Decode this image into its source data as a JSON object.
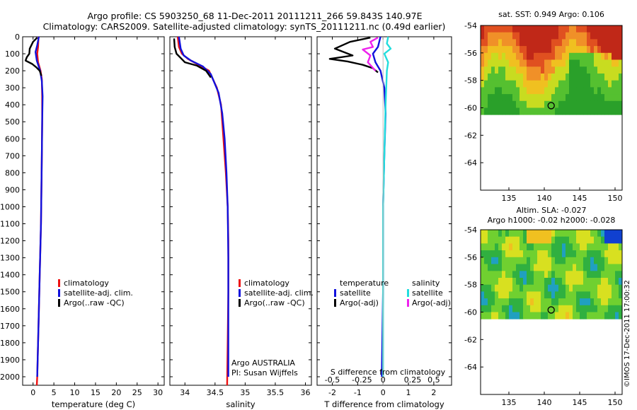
{
  "title": {
    "line1": "Argo profile: CS 5903250_68 11-Dec-2011 20111211_266 59.843S 140.97E",
    "line2": "Climatology: CARS2009. Satellite-adjusted climatology: synTS_20111211.nc (0.49d earlier)"
  },
  "credit": "©IMOS 17-Dec-2011 17:00:32",
  "colors": {
    "climatology": "#ee1111",
    "satellite": "#1111dd",
    "argo": "#000000",
    "sal_satellite": "#22dddd",
    "sal_argo": "#ee22ee"
  },
  "depth_axis": {
    "ylim": [
      0,
      2050
    ],
    "ticks": [
      0,
      100,
      200,
      300,
      400,
      500,
      600,
      700,
      800,
      900,
      1000,
      1100,
      1200,
      1300,
      1400,
      1500,
      1600,
      1700,
      1800,
      1900,
      2000
    ]
  },
  "chart_data": [
    {
      "type": "line",
      "id": "temperature",
      "xlabel": "temperature (deg C)",
      "xlim": [
        -2.5,
        31.5
      ],
      "xticks": [
        0,
        5,
        10,
        15,
        20,
        25,
        30
      ],
      "legend": [
        "climatology",
        "satellite-adj. clim.",
        "Argo(..raw -QC)"
      ],
      "series": [
        {
          "name": "climatology",
          "color": "#ee1111",
          "points": [
            [
              1.3,
              0
            ],
            [
              1.2,
              60
            ],
            [
              1.0,
              100
            ],
            [
              1.2,
              150
            ],
            [
              1.8,
              200
            ],
            [
              2.1,
              250
            ],
            [
              2.2,
              350
            ],
            [
              2.2,
              500
            ],
            [
              2.1,
              700
            ],
            [
              2.0,
              900
            ],
            [
              1.9,
              1100
            ],
            [
              1.6,
              1400
            ],
            [
              1.3,
              1700
            ],
            [
              1.0,
              2000
            ],
            [
              0.9,
              2050
            ]
          ]
        },
        {
          "name": "satellite-adj. clim.",
          "color": "#1111dd",
          "points": [
            [
              1.4,
              0
            ],
            [
              1.0,
              50
            ],
            [
              0.6,
              90
            ],
            [
              0.9,
              140
            ],
            [
              1.7,
              200
            ],
            [
              2.1,
              260
            ],
            [
              2.3,
              350
            ],
            [
              2.2,
              500
            ],
            [
              2.1,
              700
            ],
            [
              2.0,
              900
            ],
            [
              1.9,
              1100
            ],
            [
              1.6,
              1400
            ],
            [
              1.3,
              1700
            ],
            [
              1.0,
              2000
            ]
          ]
        },
        {
          "name": "Argo(..raw -QC)",
          "color": "#000000",
          "points": [
            [
              1.0,
              5
            ],
            [
              0.0,
              30
            ],
            [
              -0.8,
              70
            ],
            [
              -0.9,
              100
            ],
            [
              -1.5,
              120
            ],
            [
              -1.8,
              140
            ],
            [
              -0.2,
              160
            ],
            [
              0.8,
              180
            ],
            [
              1.6,
              200
            ],
            [
              2.0,
              230
            ]
          ]
        }
      ]
    },
    {
      "type": "line",
      "id": "salinity",
      "xlabel": "salinity",
      "xlim": [
        33.75,
        36.1
      ],
      "xticks": [
        34,
        34.5,
        35,
        35.5,
        36
      ],
      "legend": [
        "climatology",
        "satellite-adj. clim.",
        "Argo(..raw -QC)"
      ],
      "annotation": [
        "Argo AUSTRALIA",
        "PI: Susan Wijffels"
      ],
      "series": [
        {
          "name": "climatology",
          "color": "#ee1111",
          "points": [
            [
              33.88,
              0
            ],
            [
              33.9,
              60
            ],
            [
              33.95,
              100
            ],
            [
              34.05,
              130
            ],
            [
              34.25,
              170
            ],
            [
              34.4,
              200
            ],
            [
              34.53,
              300
            ],
            [
              34.6,
              400
            ],
            [
              34.64,
              600
            ],
            [
              34.68,
              800
            ],
            [
              34.71,
              1000
            ],
            [
              34.72,
              1200
            ],
            [
              34.72,
              1500
            ],
            [
              34.71,
              1800
            ],
            [
              34.7,
              2050
            ]
          ]
        },
        {
          "name": "satellite-adj. clim.",
          "color": "#1111dd",
          "points": [
            [
              33.9,
              0
            ],
            [
              33.93,
              70
            ],
            [
              33.98,
              110
            ],
            [
              34.1,
              140
            ],
            [
              34.3,
              175
            ],
            [
              34.43,
              220
            ],
            [
              34.56,
              330
            ],
            [
              34.62,
              450
            ],
            [
              34.66,
              600
            ],
            [
              34.69,
              800
            ],
            [
              34.71,
              1000
            ],
            [
              34.72,
              1300
            ],
            [
              34.72,
              1600
            ],
            [
              34.72,
              2000
            ]
          ]
        },
        {
          "name": "Argo(..raw -QC)",
          "color": "#000000",
          "points": [
            [
              33.82,
              10
            ],
            [
              33.83,
              60
            ],
            [
              33.86,
              100
            ],
            [
              34.0,
              150
            ],
            [
              34.2,
              170
            ],
            [
              34.35,
              200
            ],
            [
              34.43,
              240
            ]
          ]
        }
      ]
    },
    {
      "type": "line",
      "id": "difference",
      "xlabel": "T difference from climatology",
      "xlabel2": "S difference from climatology",
      "xlim": [
        -2.6,
        2.7
      ],
      "xticks": [
        -2,
        -1,
        0,
        1,
        2
      ],
      "xticks_s": [
        "-0.5",
        "-0.25",
        "0",
        "0.25",
        "0.5"
      ],
      "legend_titles": [
        "temperature",
        "salinity"
      ],
      "legend_left": [
        "satellite",
        "Argo(-adj)"
      ],
      "legend_right": [
        "satellite",
        "Argo(-adj)"
      ],
      "series": [
        {
          "name": "temperature satellite",
          "color": "#1111dd",
          "points": [
            [
              -0.1,
              0
            ],
            [
              -0.2,
              60
            ],
            [
              -0.4,
              100
            ],
            [
              -0.3,
              150
            ],
            [
              -0.1,
              200
            ],
            [
              0.05,
              300
            ],
            [
              0.1,
              450
            ],
            [
              0.05,
              700
            ],
            [
              0.0,
              1000
            ],
            [
              0.0,
              1500
            ],
            [
              -0.05,
              2000
            ]
          ]
        },
        {
          "name": "salinity satellite",
          "color": "#22dddd",
          "points": [
            [
              0.2,
              0
            ],
            [
              0.15,
              40
            ],
            [
              0.3,
              70
            ],
            [
              0.05,
              100
            ],
            [
              0.2,
              150
            ],
            [
              0.15,
              200
            ],
            [
              0.1,
              400
            ],
            [
              0.05,
              700
            ],
            [
              0.0,
              1000
            ],
            [
              0.0,
              2000
            ]
          ]
        },
        {
          "name": "temperature Argo(-adj)",
          "color": "#000000",
          "points": [
            [
              -0.5,
              5
            ],
            [
              -1.3,
              30
            ],
            [
              -1.9,
              70
            ],
            [
              -1.2,
              110
            ],
            [
              -2.1,
              130
            ],
            [
              -1.4,
              145
            ],
            [
              -0.8,
              165
            ],
            [
              -0.4,
              185
            ],
            [
              -0.2,
              210
            ]
          ]
        },
        {
          "name": "salinity Argo(-adj)",
          "color": "#ee22ee",
          "points": [
            [
              -0.2,
              5
            ],
            [
              -0.5,
              30
            ],
            [
              -0.4,
              60
            ],
            [
              -0.8,
              75
            ],
            [
              -0.5,
              110
            ],
            [
              -0.6,
              150
            ],
            [
              -0.3,
              200
            ]
          ]
        }
      ]
    },
    {
      "type": "heatmap",
      "id": "sst-map",
      "title": "sat. SST: 0.949 Argo: 0.106",
      "lat_lim": [
        -66,
        -54
      ],
      "lon_lim": [
        131,
        151
      ],
      "yticks": [
        -54,
        -56,
        -58,
        -60,
        -62,
        -64
      ],
      "xticks": [
        135,
        140,
        145,
        150
      ],
      "data_lat_min": -60.1,
      "argo_position": [
        140.97,
        -59.843
      ]
    },
    {
      "type": "heatmap",
      "id": "sla-map",
      "title": "Altim. SLA: -0.027",
      "subtitle": "Argo h1000: -0.02 h2000: -0.028",
      "lat_lim": [
        -66,
        -54
      ],
      "lon_lim": [
        131,
        151
      ],
      "yticks": [
        -54,
        -56,
        -58,
        -60,
        -62,
        -64
      ],
      "xticks": [
        135,
        140,
        145,
        150
      ],
      "data_lat_min": -60.1,
      "argo_position": [
        140.97,
        -59.843
      ]
    }
  ]
}
